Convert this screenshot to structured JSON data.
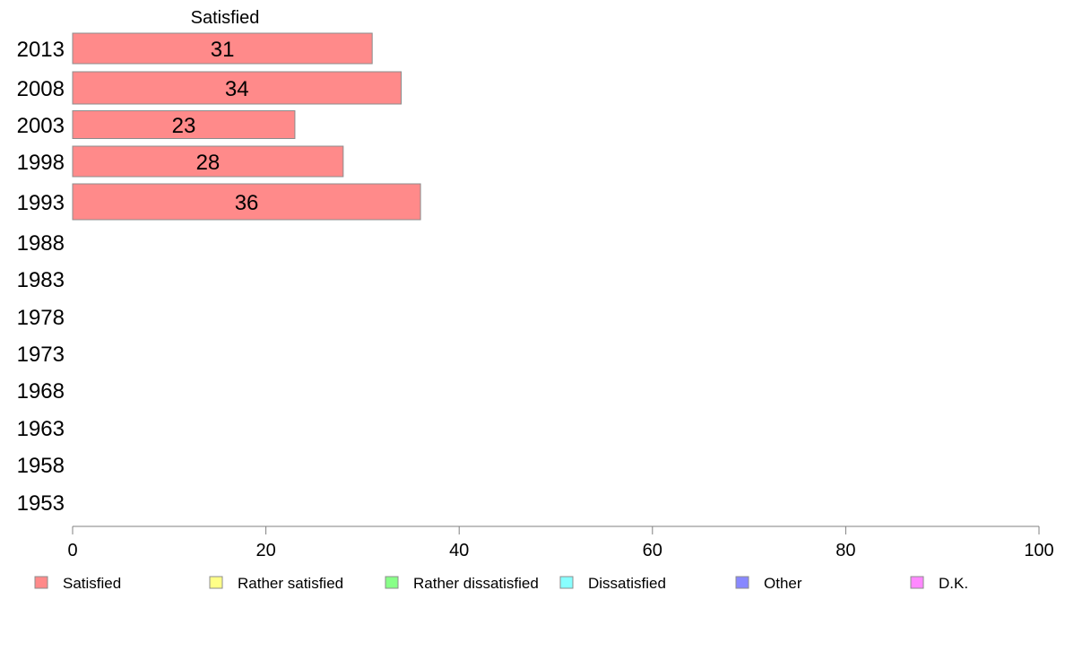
{
  "chart_data": {
    "type": "bar",
    "orientation": "horizontal",
    "series_label": "Satisfied",
    "categories": [
      "2013",
      "2008",
      "2003",
      "1998",
      "1993",
      "1988",
      "1983",
      "1978",
      "1973",
      "1968",
      "1963",
      "1958",
      "1953"
    ],
    "series": [
      {
        "name": "Satisfied",
        "color": "#ff8a8a",
        "values": [
          31,
          34,
          23,
          28,
          36,
          null,
          null,
          null,
          null,
          null,
          null,
          null,
          null
        ]
      }
    ],
    "xlim": [
      0,
      100
    ],
    "xticks": [
      0,
      20,
      40,
      60,
      80,
      100
    ],
    "legend": [
      {
        "label": "Satisfied",
        "color": "#ff8a8a"
      },
      {
        "label": "Rather satisfied",
        "color": "#ffff88"
      },
      {
        "label": "Rather dissatisfied",
        "color": "#88ff88"
      },
      {
        "label": "Dissatisfied",
        "color": "#88ffff"
      },
      {
        "label": "Other",
        "color": "#8888ff"
      },
      {
        "label": "D.K.",
        "color": "#ff88ff"
      }
    ],
    "legend_position": "bottom",
    "grid": false
  }
}
